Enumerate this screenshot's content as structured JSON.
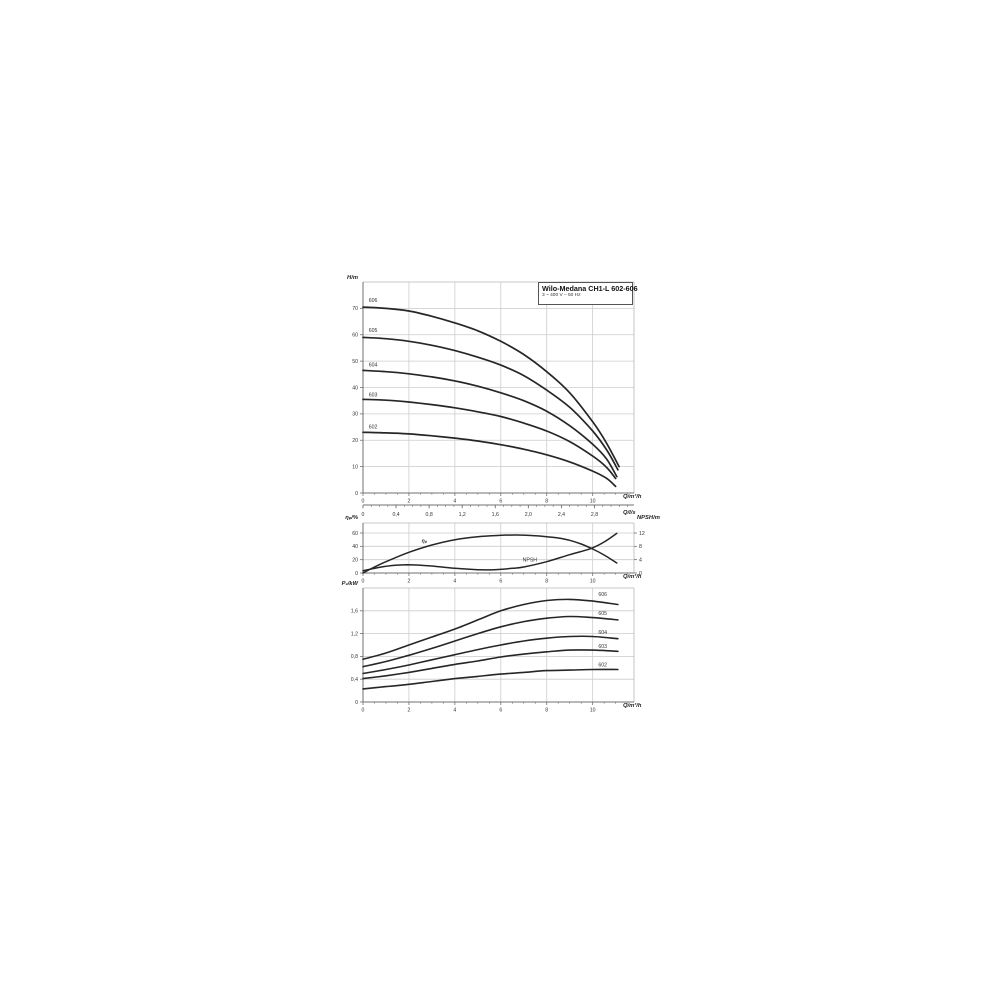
{
  "figure": {
    "title": "Wilo-Medana CH1-L 602-606",
    "subtitle": "3 ~ 400 V – 50 Hz",
    "colors": {
      "background": "#ffffff",
      "curve": "#262626",
      "grid": "#cccccc",
      "border": "#b8b8b8",
      "axis": "#707070",
      "text": "#333333"
    }
  },
  "chart_data": [
    {
      "id": "head",
      "type": "line",
      "title": "Wilo-Medana CH1-L 602-606",
      "subtitle": "3 ~ 400 V – 50 Hz",
      "xlabel": "Q/m³/h",
      "ylabel": "H/m",
      "xlim": [
        0,
        11.8
      ],
      "ylim": [
        0,
        80
      ],
      "xticks": [
        0,
        2,
        4,
        6,
        8,
        10
      ],
      "xtick_labels": [
        "0",
        "2",
        "4",
        "6",
        "8",
        "10"
      ],
      "yticks": [
        0,
        10,
        20,
        30,
        40,
        50,
        60,
        70
      ],
      "ytick_labels": [
        "0",
        "10",
        "20",
        "30",
        "40",
        "50",
        "60",
        "70"
      ],
      "series": [
        {
          "name": "606",
          "label_x": 0.25,
          "label_y": 72.5,
          "points": [
            [
              0,
              70.5
            ],
            [
              1,
              70
            ],
            [
              2,
              69
            ],
            [
              3,
              67
            ],
            [
              4,
              64.5
            ],
            [
              5,
              61.5
            ],
            [
              6,
              57.5
            ],
            [
              7,
              52.5
            ],
            [
              8,
              46
            ],
            [
              9,
              38
            ],
            [
              10,
              27
            ],
            [
              10.6,
              19
            ],
            [
              11.15,
              10
            ]
          ]
        },
        {
          "name": "605",
          "label_x": 0.25,
          "label_y": 61,
          "points": [
            [
              0,
              59
            ],
            [
              1,
              58.5
            ],
            [
              2,
              57.5
            ],
            [
              3,
              56
            ],
            [
              4,
              54
            ],
            [
              5,
              51.5
            ],
            [
              6,
              48.5
            ],
            [
              7,
              44.5
            ],
            [
              8,
              39
            ],
            [
              9,
              32.5
            ],
            [
              10,
              23.5
            ],
            [
              10.6,
              16.5
            ],
            [
              11.1,
              8.8
            ]
          ]
        },
        {
          "name": "604",
          "label_x": 0.25,
          "label_y": 48,
          "points": [
            [
              0,
              46.5
            ],
            [
              1,
              46
            ],
            [
              2,
              45.2
            ],
            [
              3,
              44
            ],
            [
              4,
              42.5
            ],
            [
              5,
              40.5
            ],
            [
              6,
              38
            ],
            [
              7,
              35
            ],
            [
              8,
              31
            ],
            [
              9,
              25.5
            ],
            [
              10,
              18.5
            ],
            [
              10.6,
              13
            ],
            [
              11.05,
              6.2
            ]
          ]
        },
        {
          "name": "603",
          "label_x": 0.25,
          "label_y": 36.5,
          "points": [
            [
              0,
              35.5
            ],
            [
              1,
              35.2
            ],
            [
              2,
              34.5
            ],
            [
              3,
              33.5
            ],
            [
              4,
              32.3
            ],
            [
              5,
              30.8
            ],
            [
              6,
              29
            ],
            [
              7,
              26.5
            ],
            [
              8,
              23.5
            ],
            [
              9,
              19.5
            ],
            [
              10,
              14
            ],
            [
              10.6,
              9.8
            ],
            [
              11,
              5.5
            ]
          ]
        },
        {
          "name": "602",
          "label_x": 0.25,
          "label_y": 24.5,
          "points": [
            [
              0,
              23
            ],
            [
              1,
              22.8
            ],
            [
              2,
              22.4
            ],
            [
              3,
              21.7
            ],
            [
              4,
              20.8
            ],
            [
              5,
              19.7
            ],
            [
              6,
              18.3
            ],
            [
              7,
              16.6
            ],
            [
              8,
              14.5
            ],
            [
              9,
              11.8
            ],
            [
              10,
              8.3
            ],
            [
              10.6,
              5.6
            ],
            [
              11,
              2.5
            ]
          ]
        }
      ]
    },
    {
      "id": "flow-ruler",
      "type": "axis",
      "label": "Q/l/s",
      "ticks": [
        0,
        0.4,
        0.8,
        1.2,
        1.6,
        2.0,
        2.4,
        2.8
      ],
      "tick_labels": [
        "0",
        "0,4",
        "0,8",
        "1,2",
        "1,6",
        "2,0",
        "2,4",
        "2,8"
      ],
      "m3h_per_unit": 3.6,
      "minor_step": 0.1,
      "minor_max": 3.2
    },
    {
      "id": "efficiency-npsh",
      "type": "line",
      "xlabel": "Q/m³/h",
      "ylabel_left": "ηₚ/%",
      "ylabel_right": "NPSH/m",
      "xlim": [
        0,
        11.8
      ],
      "ylim_left": [
        0,
        75
      ],
      "ylim_right": [
        0,
        15
      ],
      "xticks": [
        0,
        2,
        4,
        6,
        8,
        10
      ],
      "xtick_labels": [
        "0",
        "2",
        "4",
        "6",
        "8",
        "10"
      ],
      "yticks_left": [
        0,
        20,
        40,
        60
      ],
      "ytick_labels_left": [
        "0",
        "20",
        "40",
        "60"
      ],
      "yticks_right": [
        0,
        4,
        8,
        12
      ],
      "ytick_labels_right": [
        "0",
        "4",
        "8",
        "12"
      ],
      "series": [
        {
          "name": "ηₚ",
          "axis": "left",
          "italic": true,
          "label_x": 2.55,
          "label_y": 46,
          "points": [
            [
              0,
              0
            ],
            [
              0.5,
              9
            ],
            [
              1,
              17
            ],
            [
              2,
              31
            ],
            [
              3,
              42
            ],
            [
              4,
              50
            ],
            [
              5,
              54.5
            ],
            [
              6,
              56.5
            ],
            [
              6.7,
              57
            ],
            [
              7.5,
              56
            ],
            [
              8,
              54.5
            ],
            [
              8.5,
              52.5
            ],
            [
              9,
              49
            ],
            [
              9.5,
              43.5
            ],
            [
              10,
              36
            ],
            [
              10.5,
              27
            ],
            [
              11.05,
              15
            ]
          ]
        },
        {
          "name": "NPSH",
          "axis": "right",
          "italic": false,
          "label_x": 6.95,
          "label_y": 3.4,
          "points": [
            [
              0,
              0.7
            ],
            [
              0.8,
              1.8
            ],
            [
              1.4,
              2.3
            ],
            [
              1.9,
              2.45
            ],
            [
              2.5,
              2.35
            ],
            [
              3,
              2.1
            ],
            [
              4,
              1.4
            ],
            [
              5,
              1.0
            ],
            [
              5.7,
              0.95
            ],
            [
              6.5,
              1.4
            ],
            [
              7,
              1.8
            ],
            [
              8,
              3.4
            ],
            [
              9,
              5.5
            ],
            [
              9.9,
              7.3
            ],
            [
              10.5,
              9.3
            ],
            [
              11.05,
              11.9
            ]
          ]
        }
      ]
    },
    {
      "id": "power",
      "type": "line",
      "xlabel": "Q/m³/h",
      "ylabel": "P₂/kW",
      "xlim": [
        0,
        11.8
      ],
      "ylim": [
        0,
        2.0
      ],
      "xticks": [
        0,
        2,
        4,
        6,
        8,
        10
      ],
      "xtick_labels": [
        "0",
        "2",
        "4",
        "6",
        "8",
        "10"
      ],
      "yticks": [
        0,
        0.4,
        0.8,
        1.2,
        1.6
      ],
      "ytick_labels": [
        "0",
        "0,4",
        "0,8",
        "1,2",
        "1,6"
      ],
      "series": [
        {
          "name": "606",
          "label_x": 10.25,
          "label_y": 1.86,
          "points": [
            [
              0,
              0.75
            ],
            [
              1,
              0.86
            ],
            [
              2,
              1.0
            ],
            [
              3,
              1.14
            ],
            [
              4,
              1.28
            ],
            [
              5,
              1.44
            ],
            [
              6,
              1.6
            ],
            [
              7,
              1.71
            ],
            [
              8,
              1.78
            ],
            [
              9,
              1.8
            ],
            [
              10,
              1.77
            ],
            [
              11.1,
              1.71
            ]
          ]
        },
        {
          "name": "605",
          "label_x": 10.25,
          "label_y": 1.53,
          "points": [
            [
              0,
              0.62
            ],
            [
              1,
              0.71
            ],
            [
              2,
              0.82
            ],
            [
              3,
              0.94
            ],
            [
              4,
              1.07
            ],
            [
              5,
              1.2
            ],
            [
              6,
              1.32
            ],
            [
              7,
              1.41
            ],
            [
              8,
              1.47
            ],
            [
              9,
              1.5
            ],
            [
              10,
              1.48
            ],
            [
              11.1,
              1.44
            ]
          ]
        },
        {
          "name": "604",
          "label_x": 10.25,
          "label_y": 1.19,
          "points": [
            [
              0,
              0.5
            ],
            [
              1,
              0.57
            ],
            [
              2,
              0.65
            ],
            [
              3,
              0.74
            ],
            [
              4,
              0.83
            ],
            [
              5,
              0.92
            ],
            [
              6,
              1.0
            ],
            [
              7,
              1.07
            ],
            [
              8,
              1.12
            ],
            [
              9,
              1.15
            ],
            [
              10,
              1.15
            ],
            [
              11.1,
              1.11
            ]
          ]
        },
        {
          "name": "603",
          "label_x": 10.25,
          "label_y": 0.95,
          "points": [
            [
              0,
              0.41
            ],
            [
              1,
              0.46
            ],
            [
              2,
              0.52
            ],
            [
              3,
              0.59
            ],
            [
              4,
              0.66
            ],
            [
              5,
              0.72
            ],
            [
              6,
              0.79
            ],
            [
              7,
              0.84
            ],
            [
              8,
              0.88
            ],
            [
              9,
              0.91
            ],
            [
              10,
              0.91
            ],
            [
              11.1,
              0.89
            ]
          ]
        },
        {
          "name": "602",
          "label_x": 10.25,
          "label_y": 0.62,
          "points": [
            [
              0,
              0.23
            ],
            [
              1,
              0.27
            ],
            [
              2,
              0.31
            ],
            [
              3,
              0.36
            ],
            [
              4,
              0.41
            ],
            [
              5,
              0.45
            ],
            [
              6,
              0.49
            ],
            [
              7,
              0.52
            ],
            [
              8,
              0.55
            ],
            [
              9,
              0.56
            ],
            [
              10,
              0.57
            ],
            [
              11.1,
              0.57
            ]
          ]
        }
      ]
    }
  ]
}
